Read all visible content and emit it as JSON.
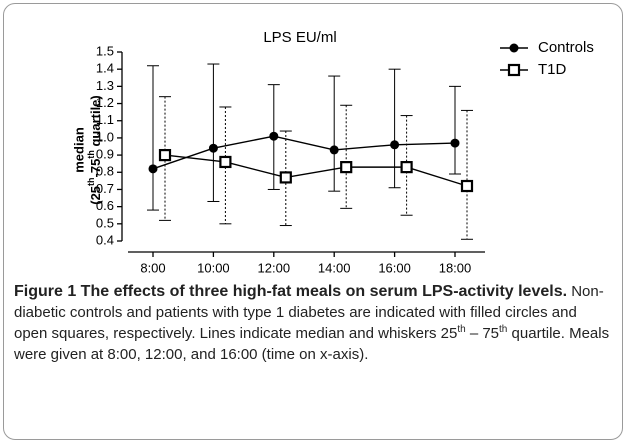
{
  "chart_data": {
    "type": "line",
    "title": "LPS EU/ml",
    "y_label": [
      "median",
      "(25",
      "th",
      "-75",
      "th",
      " quartile)"
    ],
    "categories": [
      "8:00",
      "10:00",
      "12:00",
      "14:00",
      "16:00",
      "18:00"
    ],
    "ylim": [
      0.4,
      1.5
    ],
    "yticks": [
      0.4,
      0.5,
      0.6,
      0.7,
      0.8,
      0.9,
      {
        "value": 1,
        "label": "1.0"
      },
      1.1,
      1.2,
      1.3,
      1.4,
      1.5
    ],
    "series": [
      {
        "name": "Controls",
        "color": "#000000",
        "values": [
          0.82,
          0.94,
          1.01,
          0.93,
          0.96,
          0.97
        ],
        "upper": [
          1.42,
          1.43,
          1.31,
          1.36,
          1.4,
          1.3
        ],
        "lower": [
          0.58,
          0.63,
          0.7,
          0.69,
          0.71,
          0.79
        ]
      },
      {
        "name": "T1D",
        "color": "#000000",
        "values": [
          0.9,
          0.86,
          0.77,
          0.83,
          0.83,
          0.72
        ],
        "upper": [
          1.24,
          1.18,
          1.04,
          1.19,
          1.13,
          1.16
        ],
        "lower": [
          0.52,
          0.5,
          0.49,
          0.59,
          0.55,
          0.41
        ]
      }
    ]
  },
  "caption": {
    "title": "Figure 1 The effects of three high-fat meals on serum LPS-activity levels.",
    "text": [
      " Non-diabetic controls and patients with type 1 diabetes are indicated with filled circles and open squares, respectively. Lines indicate median and whiskers 25",
      "th",
      " – 75",
      "th",
      " quartile. Meals were given at 8:00, 12:00, and 16:00 (time on x-axis)."
    ]
  }
}
